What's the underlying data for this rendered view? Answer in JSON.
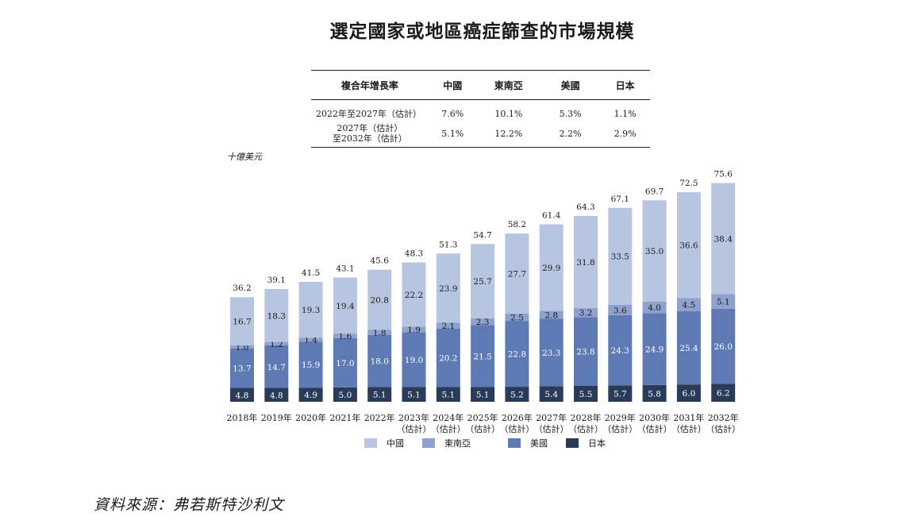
{
  "title": "選定國家或地區癌症篩查的市場規模",
  "cagr_table": {
    "headers": [
      "複合年增長率",
      "中國",
      "東南亞",
      "美國",
      "日本"
    ],
    "rows": [
      {
        "label": "2022年至2027年（估計）",
        "label_lines": [
          "2022年至2027年（估計）"
        ],
        "values": [
          "7.6%",
          "10.1%",
          "5.3%",
          "1.1%"
        ]
      },
      {
        "label": "2027年（估計）至2032年（估計）",
        "label_lines": [
          "2027年（估計）",
          "至2032年（估計）"
        ],
        "values": [
          "5.1%",
          "12.2%",
          "2.2%",
          "2.9%"
        ]
      }
    ]
  },
  "unit_label": "十億美元",
  "source": "資料來源：弗若斯特沙利文",
  "colors": {
    "中國": "#b8c5e0",
    "東南亞": "#8ea1cf",
    "美國": "#5e7ab5",
    "日本": "#2a3b5a"
  },
  "chart_data": {
    "type": "bar",
    "stacked": true,
    "title": "選定國家或地區癌症篩查的市場規模",
    "ylabel": "十億美元",
    "ylim": [
      0,
      80
    ],
    "legend_position": "bottom",
    "categories": [
      "2018年",
      "2019年",
      "2020年",
      "2021年",
      "2022年",
      "2023年（估計）",
      "2024年（估計）",
      "2025年（估計）",
      "2026年（估計）",
      "2027年（估計）",
      "2028年（估計）",
      "2029年（估計）",
      "2030年（估計）",
      "2031年（估計）",
      "2032年（估計）"
    ],
    "category_lines": [
      [
        "2018年"
      ],
      [
        "2019年"
      ],
      [
        "2020年"
      ],
      [
        "2021年"
      ],
      [
        "2022年"
      ],
      [
        "2023年",
        "（估計）"
      ],
      [
        "2024年",
        "（估計）"
      ],
      [
        "2025年",
        "（估計）"
      ],
      [
        "2026年",
        "（估計）"
      ],
      [
        "2027年",
        "（估計）"
      ],
      [
        "2028年",
        "（估計）"
      ],
      [
        "2029年",
        "（估計）"
      ],
      [
        "2030年",
        "（估計）"
      ],
      [
        "2031年",
        "（估計）"
      ],
      [
        "2032年",
        "（估計）"
      ]
    ],
    "series": [
      {
        "name": "日本",
        "color": "#2a3b5a",
        "label_color": "#ffffff",
        "values": [
          4.8,
          4.8,
          4.9,
          5.0,
          5.1,
          5.1,
          5.1,
          5.1,
          5.2,
          5.4,
          5.5,
          5.7,
          5.8,
          6.0,
          6.2
        ]
      },
      {
        "name": "美國",
        "color": "#5e7ab5",
        "label_color": "#ffffff",
        "values": [
          13.7,
          14.7,
          15.9,
          17.0,
          18.0,
          19.0,
          20.2,
          21.5,
          22.8,
          23.3,
          23.8,
          24.3,
          24.9,
          25.4,
          26.0
        ]
      },
      {
        "name": "東南亞",
        "color": "#8ea1cf",
        "label_color": "#1a1a1a",
        "values": [
          1.0,
          1.2,
          1.4,
          1.6,
          1.8,
          1.9,
          2.1,
          2.3,
          2.5,
          2.8,
          3.2,
          3.6,
          4.0,
          4.5,
          5.1
        ]
      },
      {
        "name": "中國",
        "color": "#b8c5e0",
        "label_color": "#1a1a1a",
        "values": [
          16.7,
          18.3,
          19.3,
          19.4,
          20.8,
          22.2,
          23.9,
          25.7,
          27.7,
          29.9,
          31.8,
          33.5,
          35.0,
          36.6,
          38.4
        ]
      }
    ],
    "totals": [
      36.2,
      39.1,
      41.5,
      43.1,
      45.6,
      48.3,
      51.3,
      54.7,
      58.2,
      61.4,
      64.3,
      67.1,
      69.7,
      72.5,
      75.6
    ],
    "legend_order": [
      "中國",
      "東南亞",
      "美國",
      "日本"
    ]
  }
}
